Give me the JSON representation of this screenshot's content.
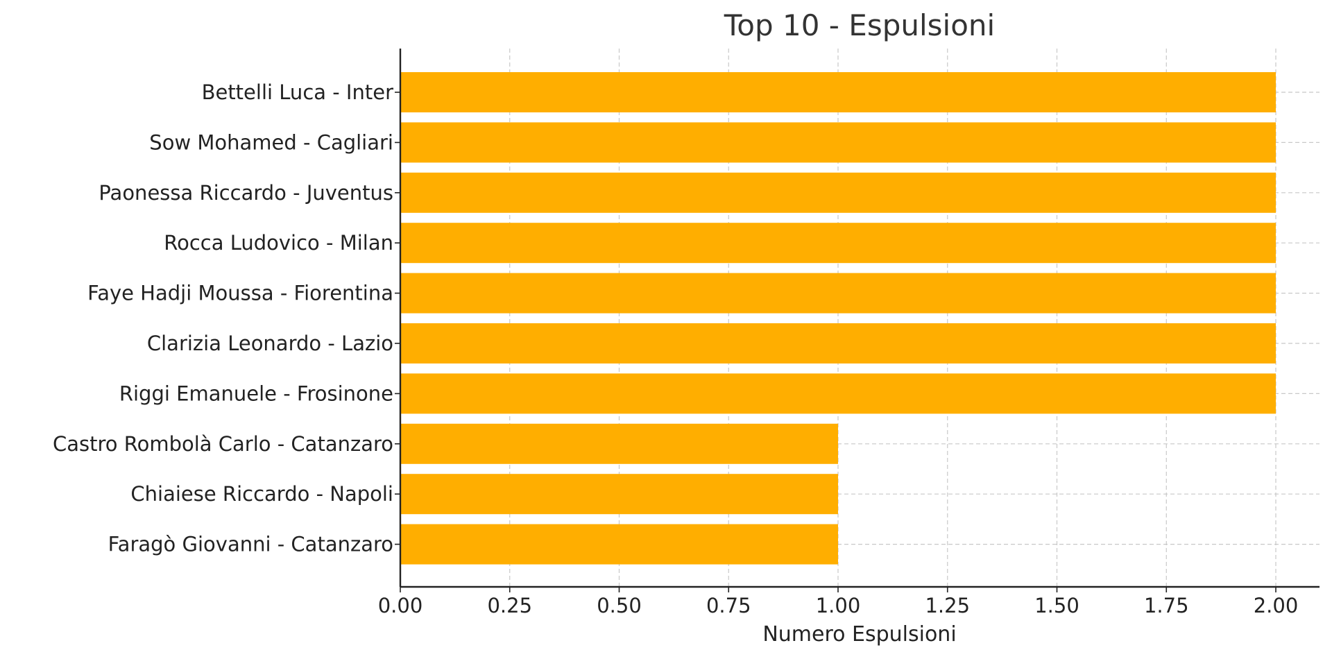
{
  "chart_data": {
    "type": "bar",
    "orientation": "horizontal",
    "title": "Top 10 - Espulsioni",
    "xlabel": "Numero Espulsioni",
    "ylabel": "",
    "xlim": [
      0,
      2.1
    ],
    "xticks": [
      "0.00",
      "0.25",
      "0.50",
      "0.75",
      "1.00",
      "1.25",
      "1.50",
      "1.75",
      "2.00"
    ],
    "xtick_values": [
      0,
      0.25,
      0.5,
      0.75,
      1.0,
      1.25,
      1.5,
      1.75,
      2.0
    ],
    "categories": [
      "Bettelli Luca - Inter",
      "Sow Mohamed - Cagliari",
      "Paonessa Riccardo - Juventus",
      "Rocca Ludovico - Milan",
      "Faye Hadji Moussa - Fiorentina",
      "Clarizia Leonardo - Lazio",
      "Riggi Emanuele - Frosinone",
      "Castro Rombolà Carlo - Catanzaro",
      "Chiaiese Riccardo - Napoli",
      "Faragò Giovanni - Catanzaro"
    ],
    "values": [
      2,
      2,
      2,
      2,
      2,
      2,
      2,
      1,
      1,
      1
    ],
    "bar_color": "#FFAE00",
    "grid": true,
    "legend": "none"
  }
}
